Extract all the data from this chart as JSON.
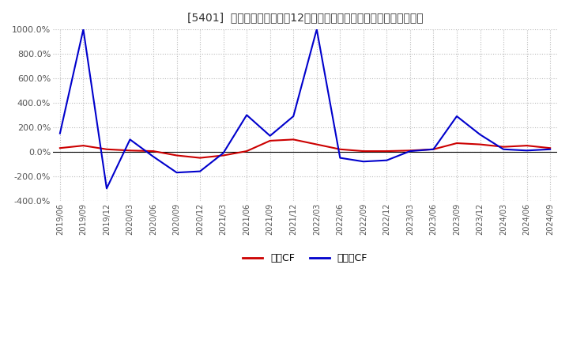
{
  "title": "[5401]  キャッシュフローの12か月移動合計の対前年同期増減率の推移",
  "ylim": [
    -400,
    1000
  ],
  "yticks": [
    -400,
    -200,
    0,
    200,
    400,
    600,
    800,
    1000
  ],
  "background_color": "#ffffff",
  "grid_color": "#bbbbbb",
  "legend_labels": [
    "営業CF",
    "フリーCF"
  ],
  "line_colors": [
    "#cc0000",
    "#0000cc"
  ],
  "x_labels": [
    "2019/06",
    "2019/09",
    "2019/12",
    "2020/03",
    "2020/06",
    "2020/09",
    "2020/12",
    "2021/03",
    "2021/06",
    "2021/09",
    "2021/12",
    "2022/03",
    "2022/06",
    "2022/09",
    "2022/12",
    "2023/03",
    "2023/06",
    "2023/09",
    "2023/12",
    "2024/03",
    "2024/06",
    "2024/09"
  ],
  "eigyo_cf": [
    30,
    50,
    20,
    10,
    5,
    -30,
    -50,
    -30,
    5,
    90,
    100,
    60,
    20,
    5,
    5,
    10,
    20,
    70,
    60,
    40,
    50,
    30
  ],
  "free_cf": [
    150,
    1000,
    -300,
    100,
    -40,
    -170,
    -160,
    -10,
    300,
    130,
    290,
    1000,
    -50,
    -80,
    -70,
    5,
    20,
    290,
    140,
    20,
    10,
    20
  ]
}
